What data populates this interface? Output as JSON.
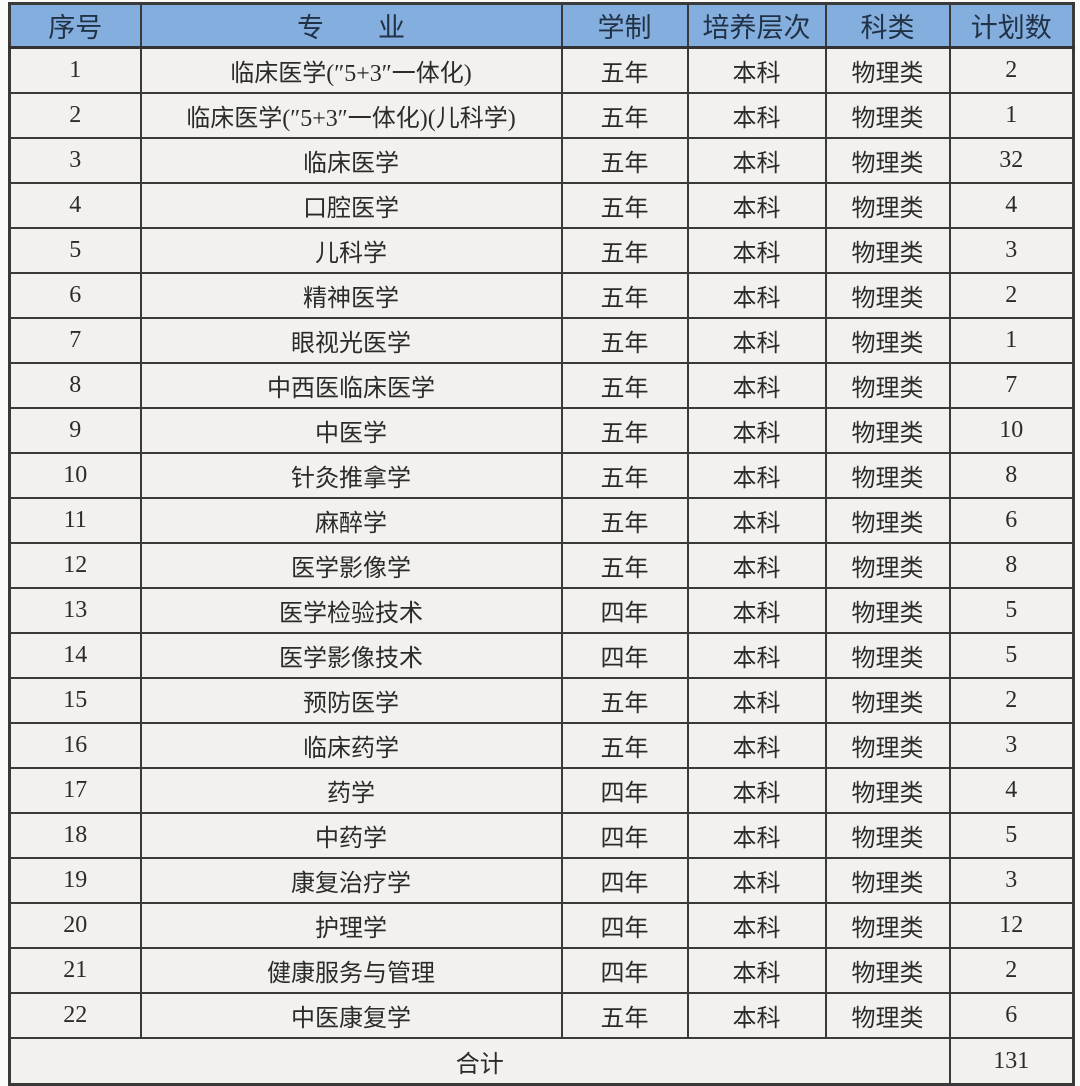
{
  "table": {
    "columns": [
      "序号",
      "专　　业",
      "学制",
      "培养层次",
      "科类",
      "计划数"
    ],
    "rows": [
      [
        "1",
        "临床医学(″5+3″一体化)",
        "五年",
        "本科",
        "物理类",
        "2"
      ],
      [
        "2",
        "临床医学(″5+3″一体化)(儿科学)",
        "五年",
        "本科",
        "物理类",
        "1"
      ],
      [
        "3",
        "临床医学",
        "五年",
        "本科",
        "物理类",
        "32"
      ],
      [
        "4",
        "口腔医学",
        "五年",
        "本科",
        "物理类",
        "4"
      ],
      [
        "5",
        "儿科学",
        "五年",
        "本科",
        "物理类",
        "3"
      ],
      [
        "6",
        "精神医学",
        "五年",
        "本科",
        "物理类",
        "2"
      ],
      [
        "7",
        "眼视光医学",
        "五年",
        "本科",
        "物理类",
        "1"
      ],
      [
        "8",
        "中西医临床医学",
        "五年",
        "本科",
        "物理类",
        "7"
      ],
      [
        "9",
        "中医学",
        "五年",
        "本科",
        "物理类",
        "10"
      ],
      [
        "10",
        "针灸推拿学",
        "五年",
        "本科",
        "物理类",
        "8"
      ],
      [
        "11",
        "麻醉学",
        "五年",
        "本科",
        "物理类",
        "6"
      ],
      [
        "12",
        "医学影像学",
        "五年",
        "本科",
        "物理类",
        "8"
      ],
      [
        "13",
        "医学检验技术",
        "四年",
        "本科",
        "物理类",
        "5"
      ],
      [
        "14",
        "医学影像技术",
        "四年",
        "本科",
        "物理类",
        "5"
      ],
      [
        "15",
        "预防医学",
        "五年",
        "本科",
        "物理类",
        "2"
      ],
      [
        "16",
        "临床药学",
        "五年",
        "本科",
        "物理类",
        "3"
      ],
      [
        "17",
        "药学",
        "四年",
        "本科",
        "物理类",
        "4"
      ],
      [
        "18",
        "中药学",
        "四年",
        "本科",
        "物理类",
        "5"
      ],
      [
        "19",
        "康复治疗学",
        "四年",
        "本科",
        "物理类",
        "3"
      ],
      [
        "20",
        "护理学",
        "四年",
        "本科",
        "物理类",
        "12"
      ],
      [
        "21",
        "健康服务与管理",
        "四年",
        "本科",
        "物理类",
        "2"
      ],
      [
        "22",
        "中医康复学",
        "五年",
        "本科",
        "物理类",
        "6"
      ]
    ],
    "total_label": "合计",
    "total_value": "131"
  },
  "colors": {
    "header_bg": "#84aedd",
    "header_text": "#223246",
    "cell_bg": "#f2f1ee",
    "cell_text": "#2b2b2b",
    "border": "#3a3a3a"
  }
}
